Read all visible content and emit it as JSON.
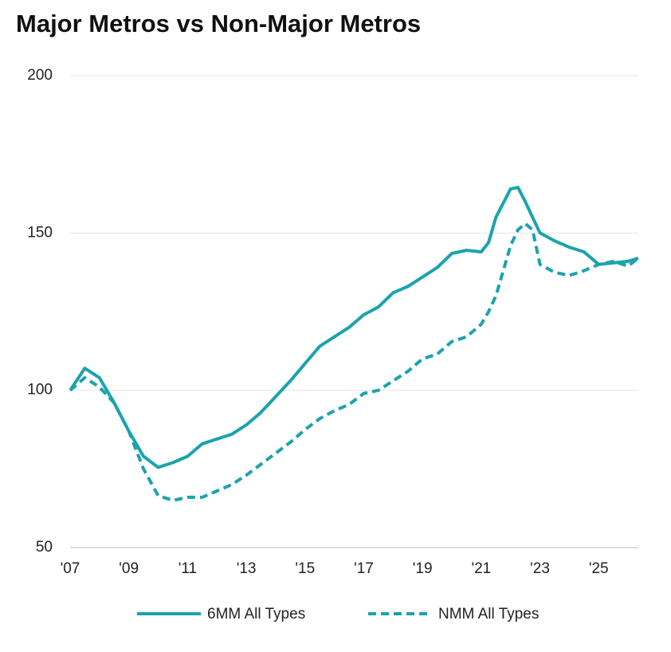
{
  "chart_data": {
    "type": "line",
    "title": "Major Metros vs Non-Major Metros",
    "x": [
      2007,
      2007.5,
      2008,
      2008.5,
      2009,
      2009.5,
      2010,
      2010.5,
      2011,
      2011.5,
      2012,
      2012.5,
      2013,
      2013.5,
      2014,
      2014.5,
      2015,
      2015.5,
      2016,
      2016.5,
      2017,
      2017.5,
      2018,
      2018.5,
      2019,
      2019.5,
      2020,
      2020.5,
      2021,
      2021.25,
      2021.5,
      2022,
      2022.25,
      2022.5,
      2022.75,
      2023,
      2023.5,
      2024,
      2024.5,
      2025,
      2025.5,
      2026,
      2026.35
    ],
    "series": [
      {
        "name": "6MM All Types",
        "color": "#1ba3ad",
        "dash": false,
        "values": [
          100,
          107,
          104,
          96,
          87,
          79,
          75.5,
          77,
          79,
          83,
          84.5,
          86,
          89,
          93,
          98,
          103,
          108.5,
          114,
          117,
          120,
          124,
          126.5,
          131,
          133,
          136,
          139,
          143.5,
          144.5,
          144,
          147,
          155,
          164,
          164.5,
          160,
          155,
          150,
          147.5,
          145.5,
          144,
          140,
          140.5,
          141,
          142
        ]
      },
      {
        "name": "NMM All Types",
        "color": "#1ba3ad",
        "dash": true,
        "values": [
          100,
          104,
          101,
          96,
          87,
          75,
          66.5,
          65,
          66,
          66,
          68,
          70,
          73,
          76.5,
          80,
          83.5,
          87.5,
          91,
          93.5,
          95.5,
          99,
          100,
          103,
          106,
          110,
          111.5,
          115.5,
          117,
          121,
          125,
          130,
          146,
          151,
          153,
          151,
          140,
          137.5,
          136.5,
          138,
          140,
          141,
          139.5,
          142
        ]
      }
    ],
    "xlim": [
      2007,
      2026.35
    ],
    "xticks": [
      {
        "value": 2007,
        "label": "'07"
      },
      {
        "value": 2009,
        "label": "'09"
      },
      {
        "value": 2011,
        "label": "'11"
      },
      {
        "value": 2013,
        "label": "'13"
      },
      {
        "value": 2015,
        "label": "'15"
      },
      {
        "value": 2017,
        "label": "'17"
      },
      {
        "value": 2019,
        "label": "'19"
      },
      {
        "value": 2021,
        "label": "'21"
      },
      {
        "value": 2023,
        "label": "'23"
      },
      {
        "value": 2025,
        "label": "'25"
      }
    ],
    "ylim": [
      50,
      200
    ],
    "yticks": [
      50,
      100,
      150,
      200
    ],
    "grid": true,
    "legend": "bottom"
  }
}
